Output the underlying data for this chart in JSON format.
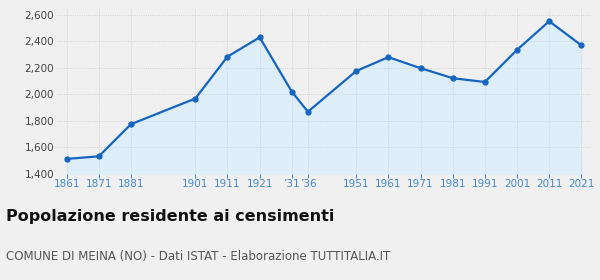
{
  "values": [
    1511,
    1531,
    1774,
    1968,
    2285,
    2431,
    2020,
    1868,
    2176,
    2281,
    2198,
    2122,
    2093,
    2336,
    2553,
    2371
  ],
  "x_positions": [
    0,
    1,
    2,
    4,
    5,
    6,
    7,
    7.5,
    9,
    10,
    11,
    12,
    13,
    14,
    15,
    16
  ],
  "tick_positions": [
    0,
    1,
    2,
    4,
    5,
    6,
    7,
    7.5,
    9,
    10,
    11,
    12,
    13,
    14,
    15,
    16
  ],
  "tick_labels": [
    "1861",
    "1871",
    "1881",
    "1901",
    "1911",
    "1921",
    "’31",
    "’36",
    "1951",
    "1961",
    "1971",
    "1981",
    "1991",
    "2001",
    "2011",
    "2021"
  ],
  "line_color": "#1565c0",
  "fill_color": "#ddeef8",
  "marker_color": "#1565c0",
  "bg_color": "#f0f0f0",
  "plot_bg_color": "#f0f0f0",
  "ylim": [
    1400,
    2650
  ],
  "xlim": [
    -0.3,
    16.3
  ],
  "yticks": [
    1400,
    1600,
    1800,
    2000,
    2200,
    2400,
    2600
  ],
  "title": "Popolazione residente ai censimenti",
  "subtitle": "COMUNE DI MEINA (NO) - Dati ISTAT - Elaborazione TUTTITALIA.IT",
  "title_fontsize": 11.5,
  "subtitle_fontsize": 8.5,
  "xtick_color": "#4488cc",
  "ytick_color": "#444444",
  "grid_color": "#cccccc",
  "linewidth": 1.6,
  "markersize": 3.5
}
